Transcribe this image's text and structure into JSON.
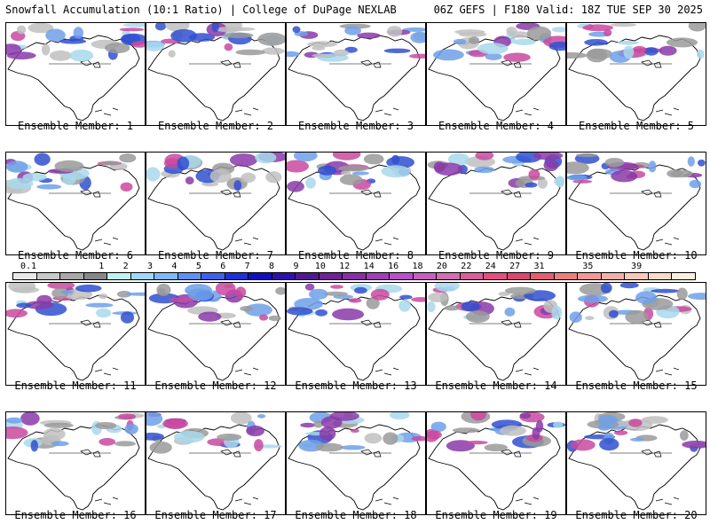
{
  "header": {
    "title_left": "Snowfall Accumulation (10:1 Ratio) | College of DuPage NEXLAB",
    "title_right": "06Z GEFS | F180 Valid: 18Z TUE SEP 30 2025"
  },
  "panels": [
    {
      "label": "Ensemble Member: 1"
    },
    {
      "label": "Ensemble Member: 2"
    },
    {
      "label": "Ensemble Member: 3"
    },
    {
      "label": "Ensemble Member: 4"
    },
    {
      "label": "Ensemble Member: 5"
    },
    {
      "label": "Ensemble Member: 6"
    },
    {
      "label": "Ensemble Member: 7"
    },
    {
      "label": "Ensemble Member: 8"
    },
    {
      "label": "Ensemble Member: 9"
    },
    {
      "label": "Ensemble Member: 10"
    },
    {
      "label": "Ensemble Member: 11"
    },
    {
      "label": "Ensemble Member: 12"
    },
    {
      "label": "Ensemble Member: 13"
    },
    {
      "label": "Ensemble Member: 14"
    },
    {
      "label": "Ensemble Member: 15"
    },
    {
      "label": "Ensemble Member: 16"
    },
    {
      "label": "Ensemble Member: 17"
    },
    {
      "label": "Ensemble Member: 18"
    },
    {
      "label": "Ensemble Member: 19"
    },
    {
      "label": "Ensemble Member: 20"
    }
  ],
  "colorbar": {
    "ticks": [
      "0.1",
      "1",
      "2",
      "3",
      "4",
      "5",
      "6",
      "7",
      "8",
      "9",
      "10",
      "12",
      "14",
      "16",
      "18",
      "20",
      "22",
      "24",
      "27",
      "31",
      "35",
      "39"
    ],
    "colors": [
      "#e8e8e8",
      "#c8c8c8",
      "#a8a8a8",
      "#888888",
      "#c0f0f0",
      "#a0d8f8",
      "#80b8f8",
      "#6090f0",
      "#4060e8",
      "#2030d8",
      "#1010c0",
      "#3010a8",
      "#501890",
      "#702098",
      "#8830a8",
      "#a040b8",
      "#b850c8",
      "#c860c0",
      "#d070b0",
      "#d86098",
      "#e05080",
      "#d84870",
      "#e06070",
      "#e88080",
      "#f09898",
      "#f0b0a8",
      "#f8c8b8",
      "#f8dcc8",
      "#fcefe0"
    ]
  }
}
